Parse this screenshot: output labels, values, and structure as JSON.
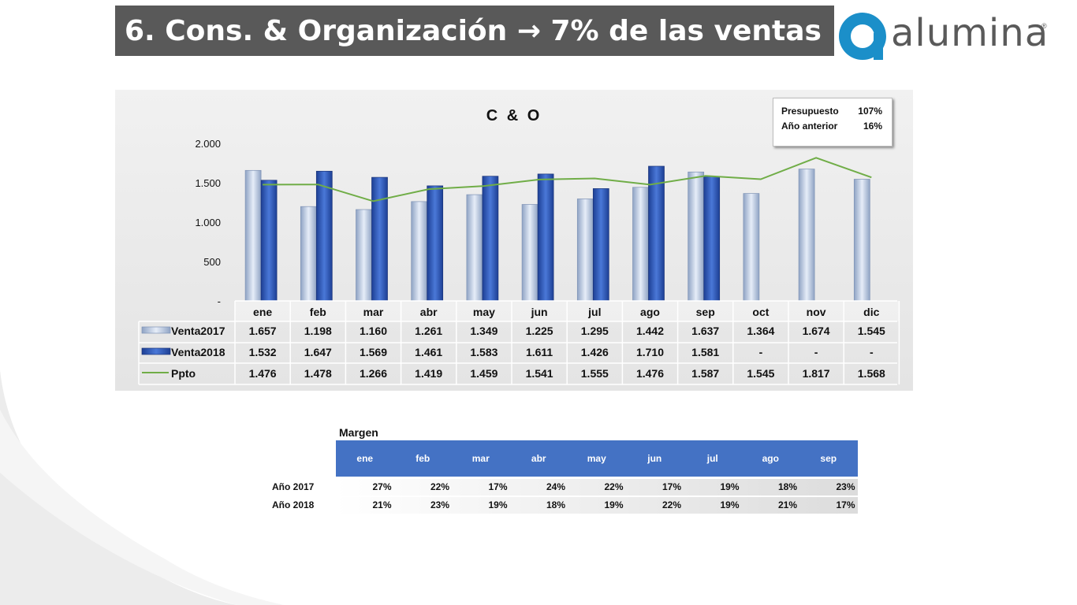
{
  "slide": {
    "title": "6. Cons. & Organización → 7% de las ventas",
    "logo_text": "alumina",
    "logo_reg": "®"
  },
  "colors": {
    "title_bg": "#595959",
    "venta2017": "#b7c6e0",
    "venta2018": "#2f55b5",
    "ppto": "#70ad47",
    "logo_blue": "#1b8fc9",
    "margen_header": "#4472c4"
  },
  "legend_box": {
    "presupuesto_label": "Presupuesto",
    "presupuesto_value": "107%",
    "anio_anterior_label": "Año anterior",
    "anio_anterior_value": "16%"
  },
  "chart_data": {
    "type": "bar",
    "title": "C & O",
    "categories": [
      "ene",
      "feb",
      "mar",
      "abr",
      "may",
      "jun",
      "jul",
      "ago",
      "sep",
      "oct",
      "nov",
      "dic"
    ],
    "y_ticks": [
      "-",
      "500",
      "1.000",
      "1.500",
      "2.000"
    ],
    "ylim": [
      0,
      2000
    ],
    "grid": false,
    "series": [
      {
        "name": "Venta2017",
        "kind": "bar",
        "values": [
          1657,
          1198,
          1160,
          1261,
          1349,
          1225,
          1295,
          1442,
          1637,
          1364,
          1674,
          1545
        ],
        "labels": [
          "1.657",
          "1.198",
          "1.160",
          "1.261",
          "1.349",
          "1.225",
          "1.295",
          "1.442",
          "1.637",
          "1.364",
          "1.674",
          "1.545"
        ]
      },
      {
        "name": "Venta2018",
        "kind": "bar",
        "values": [
          1532,
          1647,
          1569,
          1461,
          1583,
          1611,
          1426,
          1710,
          1581,
          null,
          null,
          null
        ],
        "labels": [
          "1.532",
          "1.647",
          "1.569",
          "1.461",
          "1.583",
          "1.611",
          "1.426",
          "1.710",
          "1.581",
          "-",
          "-",
          "-"
        ]
      },
      {
        "name": "Ppto",
        "kind": "line",
        "values": [
          1476,
          1478,
          1266,
          1419,
          1459,
          1541,
          1555,
          1476,
          1587,
          1545,
          1817,
          1568
        ],
        "labels": [
          "1.476",
          "1.478",
          "1.266",
          "1.419",
          "1.459",
          "1.541",
          "1.555",
          "1.476",
          "1.587",
          "1.545",
          "1.817",
          "1.568"
        ]
      }
    ]
  },
  "margen": {
    "title": "Margen",
    "months": [
      "ene",
      "feb",
      "mar",
      "abr",
      "may",
      "jun",
      "jul",
      "ago",
      "sep"
    ],
    "rows": [
      {
        "label": "Año 2017",
        "values": [
          "27%",
          "22%",
          "17%",
          "24%",
          "22%",
          "17%",
          "19%",
          "18%",
          "23%"
        ]
      },
      {
        "label": "Año 2018",
        "values": [
          "21%",
          "23%",
          "19%",
          "18%",
          "19%",
          "22%",
          "19%",
          "21%",
          "17%"
        ]
      }
    ]
  }
}
